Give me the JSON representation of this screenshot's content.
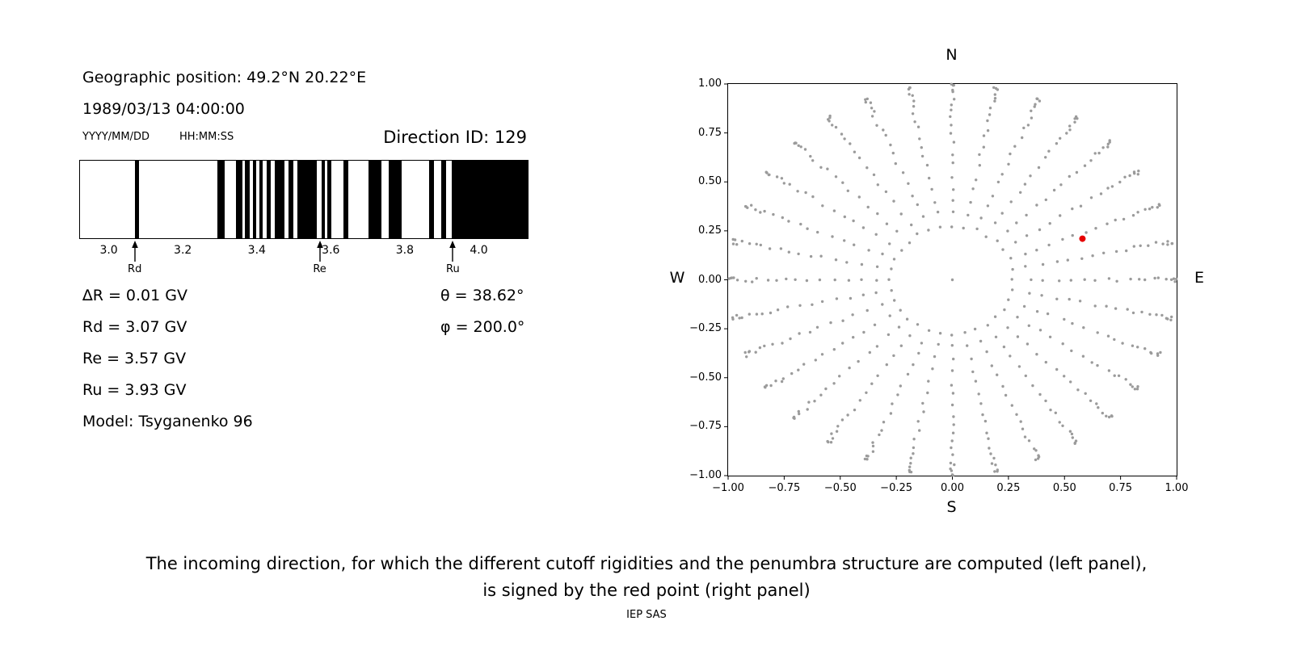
{
  "header": {
    "geo_position": "Geographic position: 49.2°N 20.22°E",
    "datetime": "1989/03/13 04:00:00",
    "date_format_label": "YYYY/MM/DD",
    "time_format_label": "HH:MM:SS",
    "direction_id": "Direction ID: 129"
  },
  "info": {
    "delta_r": "∆R = 0.01 GV",
    "rd": "Rd = 3.07 GV",
    "re": "Re = 3.57 GV",
    "ru": "Ru = 3.93 GV",
    "model": "Model: Tsyganenko 96",
    "theta": "θ = 38.62°",
    "phi": "φ = 200.0°"
  },
  "caption": {
    "line1": "The incoming direction, for which the different cutoff rigidities and the penumbra structure are computed (left panel),",
    "line2": "is signed by the red point (right panel)",
    "credit": "IEP SAS"
  },
  "chart_data": [
    {
      "type": "bar",
      "subtype": "penumbra-barcode",
      "xlim": [
        2.92,
        4.13
      ],
      "xticks": [
        3.0,
        3.2,
        3.4,
        3.6,
        3.8,
        4.0
      ],
      "xtick_labels": [
        "3.0",
        "3.2",
        "3.4",
        "3.6",
        "3.8",
        "4.0"
      ],
      "bar_color": "#000000",
      "background": "#ffffff",
      "black_intervals_gv": [
        [
          3.068,
          3.079
        ],
        [
          3.292,
          3.312
        ],
        [
          3.341,
          3.358
        ],
        [
          3.365,
          3.378
        ],
        [
          3.387,
          3.397
        ],
        [
          3.405,
          3.413
        ],
        [
          3.424,
          3.435
        ],
        [
          3.446,
          3.473
        ],
        [
          3.484,
          3.497
        ],
        [
          3.508,
          3.56
        ],
        [
          3.574,
          3.581
        ],
        [
          3.588,
          3.6
        ],
        [
          3.633,
          3.646
        ],
        [
          3.699,
          3.734
        ],
        [
          3.754,
          3.789
        ],
        [
          3.864,
          3.877
        ],
        [
          3.897,
          3.91
        ],
        [
          3.925,
          4.13
        ]
      ],
      "markers": [
        {
          "label": "Rd",
          "value_gv": 3.07
        },
        {
          "label": "Re",
          "value_gv": 3.57
        },
        {
          "label": "Ru",
          "value_gv": 3.93
        }
      ]
    },
    {
      "type": "scatter",
      "xlim": [
        -1.0,
        1.0
      ],
      "ylim": [
        -1.0,
        1.0
      ],
      "xticks": [
        -1.0,
        -0.75,
        -0.5,
        -0.25,
        0.0,
        0.25,
        0.5,
        0.75,
        1.0
      ],
      "xtick_labels": [
        "−1.00",
        "−0.75",
        "−0.50",
        "−0.25",
        "0.00",
        "0.25",
        "0.50",
        "0.75",
        "1.00"
      ],
      "yticks": [
        -1.0,
        -0.75,
        -0.5,
        -0.25,
        0.0,
        0.25,
        0.5,
        0.75,
        1.0
      ],
      "ytick_labels": [
        "−1.00",
        "−0.75",
        "−0.50",
        "−0.25",
        "0.00",
        "0.25",
        "0.50",
        "0.75",
        "1.00"
      ],
      "compass": {
        "top": "N",
        "bottom": "S",
        "left": "W",
        "right": "E"
      },
      "grid_points": {
        "azimuth_count": 32,
        "zenith_start_deg": 16,
        "zenith_end_deg": 88,
        "zenith_step_deg": 4,
        "projection": "r=sin(zenith)",
        "include_center_dot": true,
        "color": "#9b9b9b"
      },
      "red_point": {
        "x": 0.58,
        "y": 0.21,
        "color": "#e60000"
      }
    }
  ]
}
